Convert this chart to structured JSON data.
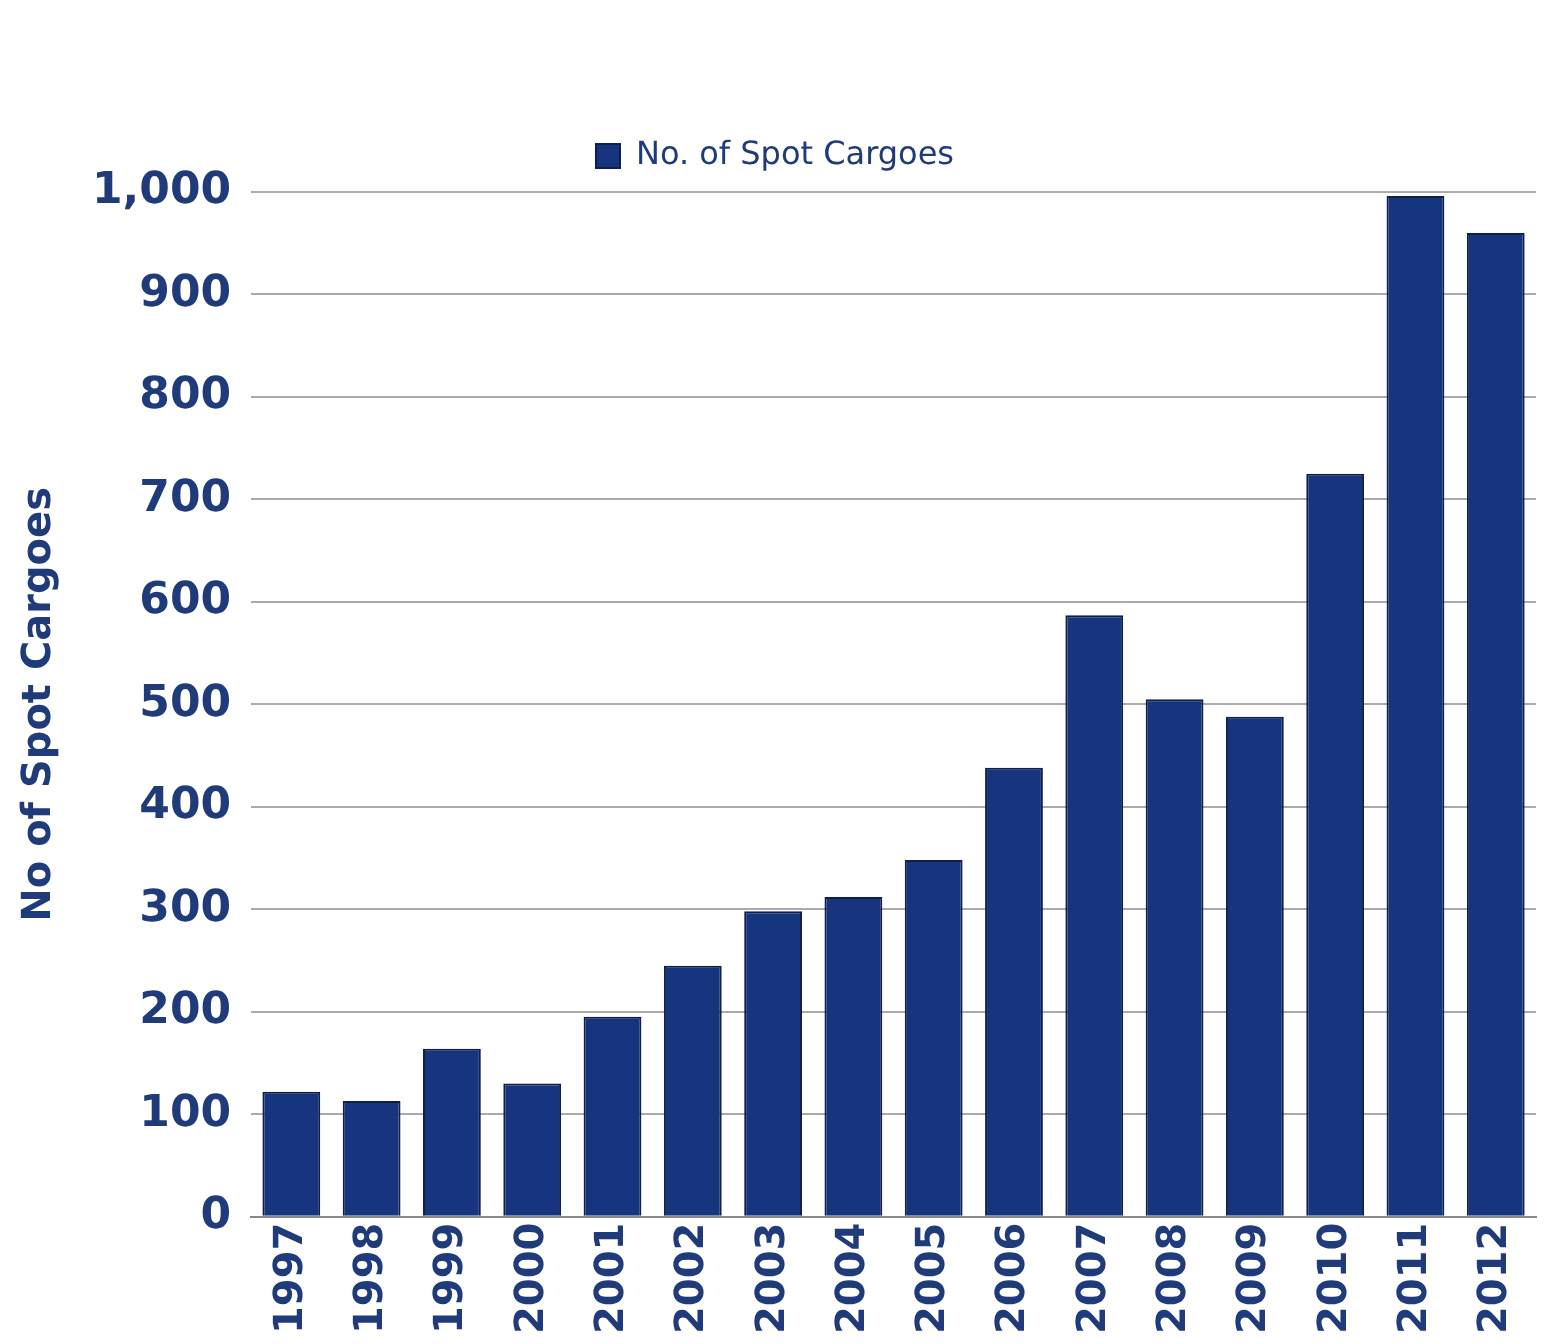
{
  "chart_data": {
    "type": "bar",
    "ylabel": "No of Spot Cargoes",
    "legend": "top",
    "categories": [
      "1997",
      "1998",
      "1999",
      "2000",
      "2001",
      "2002",
      "2003",
      "2004",
      "2005",
      "2006",
      "2007",
      "2008",
      "2009",
      "2010",
      "2011",
      "2012"
    ],
    "series": [
      {
        "name": "No. of Spot Cargoes",
        "color": "#17357f",
        "values": [
          122,
          113,
          164,
          130,
          195,
          245,
          298,
          312,
          348,
          438,
          587,
          505,
          488,
          725,
          996,
          960
        ]
      }
    ],
    "ylim": [
      0,
      1000
    ],
    "yticks": [
      0,
      100,
      200,
      300,
      400,
      500,
      600,
      700,
      800,
      900,
      {
        "value": 1000,
        "label": "1,000"
      }
    ],
    "grid": "y"
  }
}
